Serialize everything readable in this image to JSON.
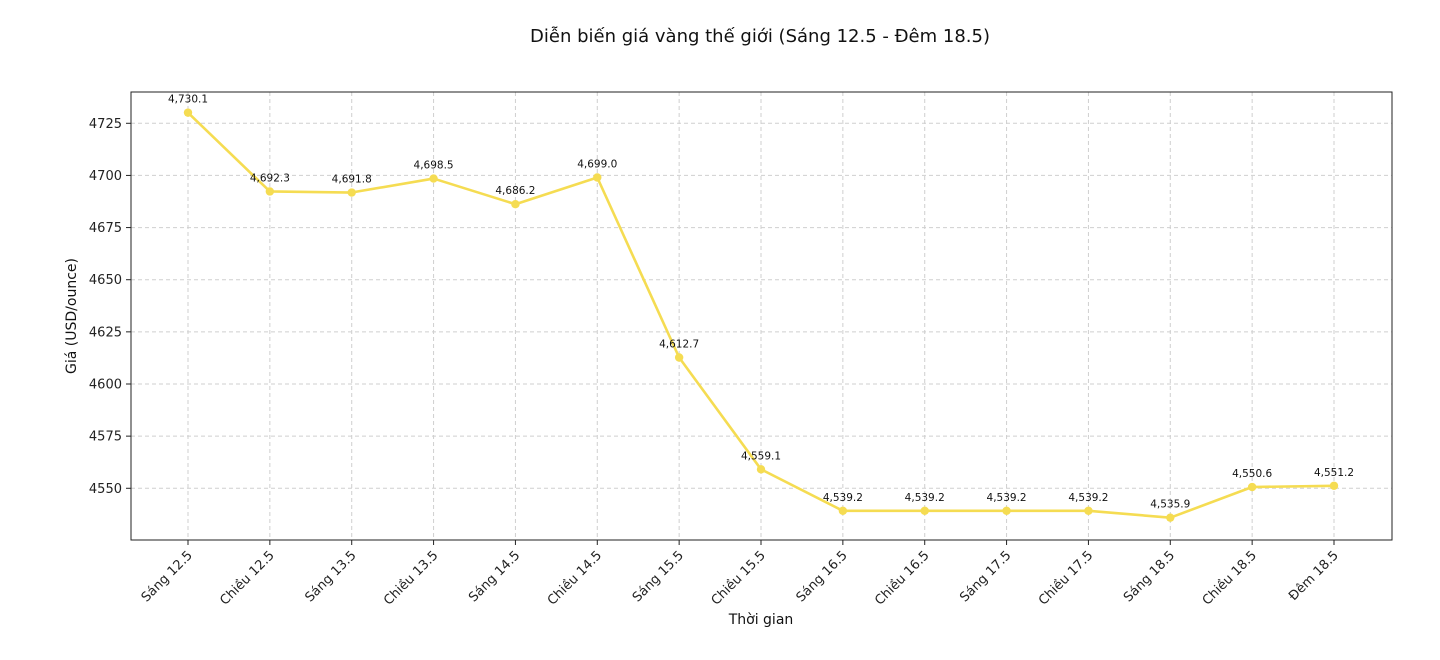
{
  "chart_data": {
    "type": "line",
    "title": "Diễn biến giá vàng thế giới (Sáng 12.5 - Đêm 18.5)",
    "xlabel": "Thời gian",
    "ylabel": "Giá (USD/ounce)",
    "categories": [
      "Sáng 12.5",
      "Chiều 12.5",
      "Sáng 13.5",
      "Chiều 13.5",
      "Sáng 14.5",
      "Chiều 14.5",
      "Sáng 15.5",
      "Chiều 15.5",
      "Sáng 16.5",
      "Chiều 16.5",
      "Sáng 17.5",
      "Chiều 17.5",
      "Sáng 18.5",
      "Chiều 18.5",
      "Đêm 18.5"
    ],
    "series": [
      {
        "values": [
          4730.1,
          4692.3,
          4691.8,
          4698.5,
          4686.2,
          4699.0,
          4612.7,
          4559.1,
          4539.2,
          4539.2,
          4539.2,
          4539.2,
          4535.9,
          4550.6,
          4551.2
        ],
        "labels": [
          "4,730.1",
          "4,692.3",
          "4,691.8",
          "4,698.5",
          "4,686.2",
          "4,699.0",
          "4,612.7",
          "4,559.1",
          "4,539.2",
          "4,539.2",
          "4,539.2",
          "4,539.2",
          "4,535.9",
          "4,550.6",
          "4,551.2"
        ],
        "color": "#f5dc52"
      }
    ],
    "yticks": [
      4550,
      4575,
      4600,
      4625,
      4650,
      4675,
      4700,
      4725
    ],
    "ytick_labels": [
      "4550",
      "4575",
      "4600",
      "4625",
      "4650",
      "4675",
      "4700",
      "4725"
    ],
    "ylim": [
      4525.2,
      4740
    ],
    "grid": true,
    "legend": false
  }
}
